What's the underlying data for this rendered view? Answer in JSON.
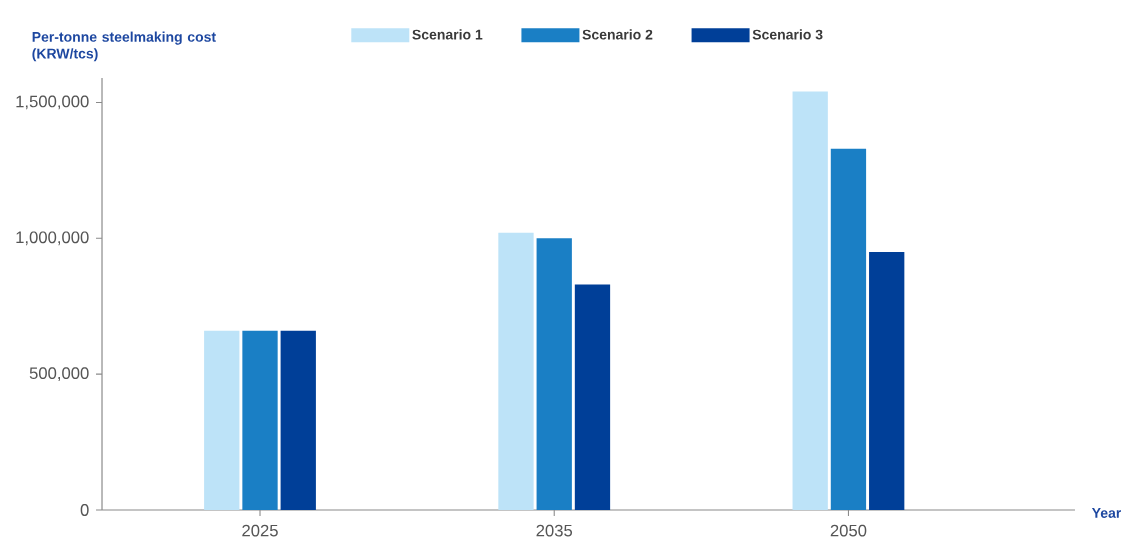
{
  "chart_data": {
    "type": "bar",
    "ylabel": "Per-tonne steelmaking cost (KRW/tcs)",
    "xlabel": "Year",
    "categories": [
      "2025",
      "2035",
      "2050"
    ],
    "series": [
      {
        "name": "Scenario 1",
        "color": "#bde3f8",
        "values": [
          660000,
          1020000,
          1540000
        ]
      },
      {
        "name": "Scenario 2",
        "color": "#1a7fc5",
        "values": [
          660000,
          1000000,
          1330000
        ]
      },
      {
        "name": "Scenario 3",
        "color": "#003f98",
        "values": [
          660000,
          830000,
          950000
        ]
      }
    ],
    "ylim": [
      0,
      1590000
    ],
    "yticks": [
      {
        "value": 0,
        "label": "0"
      },
      {
        "value": 500000,
        "label": "500,000"
      },
      {
        "value": 1000000,
        "label": "1,000,000"
      },
      {
        "value": 1500000,
        "label": "1,500,000"
      }
    ],
    "grid": false,
    "legend": "top"
  }
}
